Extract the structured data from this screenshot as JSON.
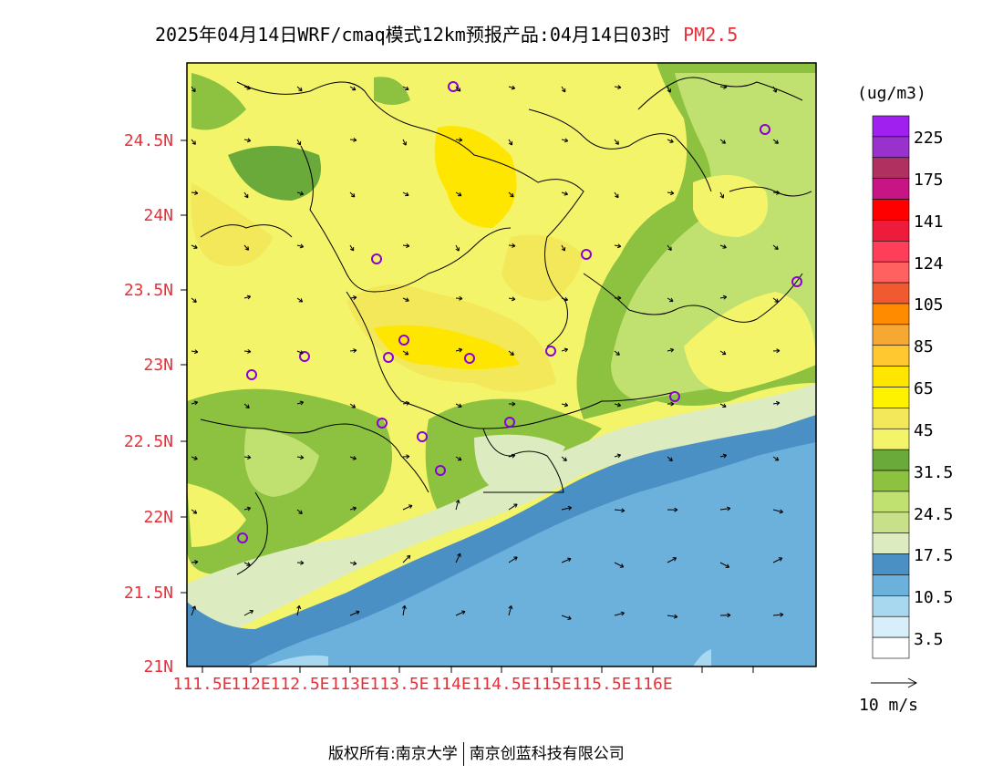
{
  "title": {
    "main": "2025年04月14日WRF/cmaq模式12km预报产品:04月14日03时",
    "variable": "PM2.5"
  },
  "lat_ticks": [
    "24.5N",
    "24N",
    "23.5N",
    "23N",
    "22.5N",
    "22N",
    "21.5N",
    "21N"
  ],
  "lon_ticks": [
    "111.5E",
    "112E",
    "112.5E",
    "113E",
    "113.5E",
    "114E",
    "114.5E",
    "115E",
    "115.5E",
    "116E"
  ],
  "colorbar": {
    "unit": "(ug/m3)",
    "labels": [
      "225",
      "175",
      "141",
      "124",
      "105",
      "85",
      "65",
      "45",
      "31.5",
      "24.5",
      "17.5",
      "10.5",
      "3.5"
    ],
    "colors": [
      "#a020f0",
      "#9932cc",
      "#b03060",
      "#c71585",
      "#ff0000",
      "#ee1c3a",
      "#ff3e5a",
      "#ff6060",
      "#f05a30",
      "#ff8c00",
      "#f7a832",
      "#ffc830",
      "#ffe600",
      "#fff200",
      "#f2e85a",
      "#f4f46a",
      "#6aaa3a",
      "#8cc240",
      "#c0e070",
      "#c8e08a",
      "#dcebc0",
      "#4a90c4",
      "#6cb0dc",
      "#a8d8f0",
      "#d8eefa",
      "#ffffff"
    ]
  },
  "wind_scale": {
    "label": "10 m/s"
  },
  "footer": {
    "left": "版权所有:南京大学",
    "right": "南京创蓝科技有限公司"
  }
}
